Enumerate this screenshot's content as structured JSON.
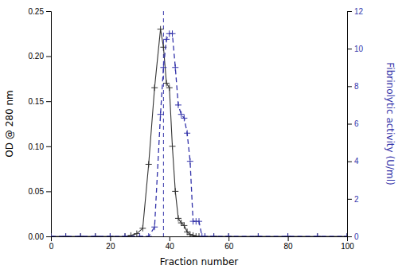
{
  "chart_data": {
    "type": "line",
    "xlabel": "Fraction number",
    "ylabel": "OD @ 280 nm",
    "y2label": "Fibrinolytic activity (U/ml)",
    "xlim": [
      0,
      100
    ],
    "xticks": [
      0,
      20,
      40,
      60,
      80,
      100
    ],
    "ylim": [
      0,
      0.25
    ],
    "yticks": [
      {
        "value": 0,
        "label": "0.00"
      },
      0.05,
      {
        "value": 0.1,
        "label": "0.10"
      },
      0.15,
      {
        "value": 0.2,
        "label": "0.20"
      },
      0.25
    ],
    "y2lim": [
      0,
      12
    ],
    "y2ticks": [
      0,
      2,
      4,
      6,
      8,
      10,
      12
    ],
    "vlines": [
      38
    ],
    "series": [
      {
        "color": "#333333",
        "marker": "plus",
        "line_style": "solid",
        "axis": "y",
        "x": [
          0,
          5,
          10,
          15,
          20,
          25,
          27,
          29,
          31,
          33,
          35,
          37,
          38,
          39,
          40,
          41,
          42,
          43,
          44,
          45,
          46,
          47,
          48,
          49,
          50,
          52,
          55,
          60,
          70,
          80,
          90,
          100
        ],
        "values": [
          0,
          0,
          0,
          0,
          0,
          0,
          0.001,
          0.003,
          0.009,
          0.08,
          0.165,
          0.23,
          0.21,
          0.17,
          0.165,
          0.1,
          0.05,
          0.02,
          0.015,
          0.012,
          0.005,
          0.002,
          0.001,
          0.0,
          0.0,
          0.0,
          0.0,
          0.0,
          0.0,
          0.0,
          0.0,
          0.0
        ]
      },
      {
        "color": "#3333aa",
        "marker": "plus",
        "line_style": "dashed",
        "axis": "y2",
        "x": [
          0,
          5,
          10,
          15,
          20,
          25,
          30,
          33,
          35,
          37,
          38,
          39,
          40,
          41,
          42,
          43,
          44,
          45,
          46,
          47,
          48,
          49,
          50,
          51,
          52,
          55,
          60,
          70,
          80,
          90,
          100
        ],
        "values": [
          0,
          0,
          0,
          0,
          0,
          0,
          0,
          0,
          0.5,
          6.5,
          9.0,
          10.5,
          10.8,
          10.8,
          9.0,
          7.0,
          6.5,
          6.3,
          5.5,
          4.0,
          0.8,
          0.8,
          0.8,
          0.0,
          0.0,
          0.0,
          0.0,
          0.0,
          0.0,
          0.0,
          0.0
        ]
      }
    ]
  }
}
